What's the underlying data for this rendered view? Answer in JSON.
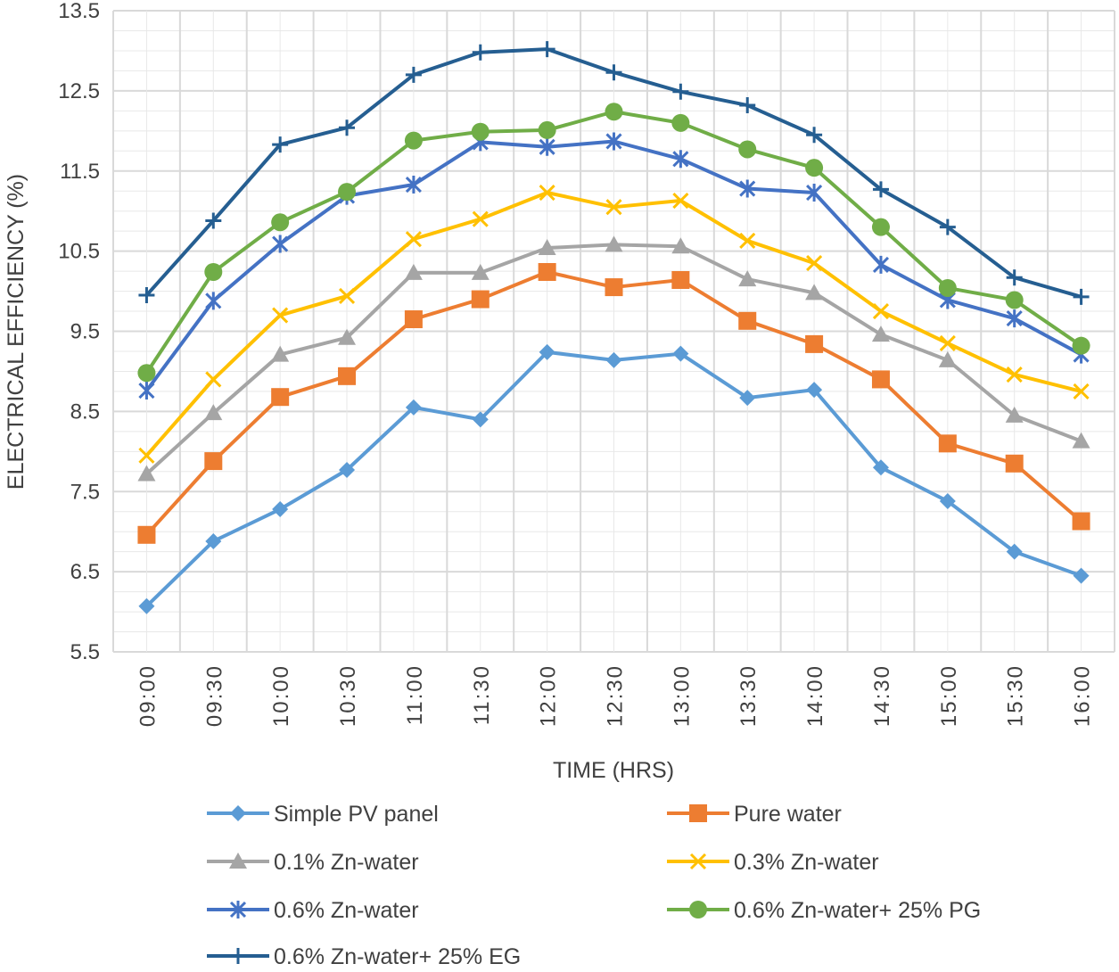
{
  "chart_data": {
    "type": "line",
    "title": "",
    "xlabel": "TIME (HRS)",
    "ylabel": "ELECTRICAL EFFICIENCY (%)",
    "ylim": [
      5.5,
      13.5
    ],
    "yticks": [
      "5.5",
      "6.5",
      "7.5",
      "8.5",
      "9.5",
      "10.5",
      "11.5",
      "12.5",
      "13.5"
    ],
    "grid": true,
    "legend_position": "bottom",
    "categories": [
      "09:00",
      "09:30",
      "10:00",
      "10:30",
      "11:00",
      "11:30",
      "12:00",
      "12:30",
      "13:00",
      "13:30",
      "14:00",
      "14:30",
      "15:00",
      "15:30",
      "16:00"
    ],
    "series": [
      {
        "name": "Simple PV panel",
        "color": "#5B9BD5",
        "marker": "diamond",
        "values": [
          6.07,
          6.88,
          7.28,
          7.77,
          8.55,
          8.4,
          9.24,
          9.14,
          9.22,
          8.67,
          8.77,
          7.8,
          7.38,
          6.75,
          6.45
        ]
      },
      {
        "name": "Pure water",
        "color": "#ED7D31",
        "marker": "square",
        "values": [
          6.96,
          7.88,
          8.68,
          8.94,
          9.65,
          9.9,
          10.24,
          10.05,
          10.14,
          9.63,
          9.34,
          8.9,
          8.1,
          7.85,
          7.13
        ]
      },
      {
        "name": "0.1% Zn-water",
        "color": "#A5A5A5",
        "marker": "triangle",
        "values": [
          7.72,
          8.48,
          9.21,
          9.42,
          10.23,
          10.23,
          10.54,
          10.58,
          10.56,
          10.15,
          9.98,
          9.46,
          9.14,
          8.45,
          8.13
        ]
      },
      {
        "name": "0.3% Zn-water",
        "color": "#FFC000",
        "marker": "x",
        "values": [
          7.95,
          8.9,
          9.7,
          9.94,
          10.65,
          10.9,
          11.23,
          11.05,
          11.13,
          10.63,
          10.35,
          9.75,
          9.35,
          8.96,
          8.75
        ]
      },
      {
        "name": "0.6% Zn-water",
        "color": "#4472C4",
        "marker": "asterisk",
        "values": [
          8.76,
          9.88,
          10.59,
          11.19,
          11.33,
          11.86,
          11.8,
          11.87,
          11.65,
          11.28,
          11.23,
          10.33,
          9.89,
          9.66,
          9.21
        ]
      },
      {
        "name": "0.6% Zn-water+  25% PG",
        "color": "#70AD47",
        "marker": "circle",
        "values": [
          8.98,
          10.24,
          10.86,
          11.24,
          11.88,
          11.99,
          12.01,
          12.24,
          12.1,
          11.77,
          11.54,
          10.8,
          10.04,
          9.89,
          9.32
        ]
      },
      {
        "name": "0.6% Zn-water+ 25% EG",
        "color": "#255E91",
        "marker": "plus",
        "values": [
          9.95,
          10.88,
          11.83,
          12.04,
          12.7,
          12.98,
          13.02,
          12.73,
          12.49,
          12.32,
          11.95,
          11.27,
          10.8,
          10.17,
          9.93
        ]
      }
    ]
  }
}
